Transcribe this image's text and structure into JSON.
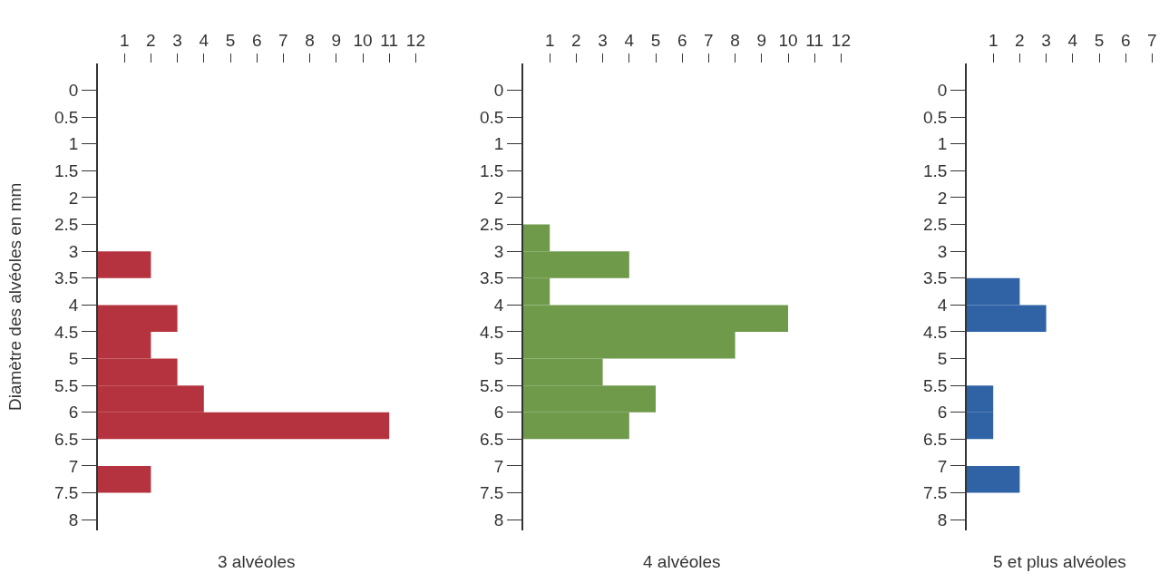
{
  "chart_data": [
    {
      "type": "histogram",
      "orientation": "horizontal",
      "ylabel": "Diamètre des alvéoles en mm",
      "xlabel": "3 alvéoles",
      "color": "#b5333e",
      "bins": [
        0,
        0.5,
        1,
        1.5,
        2,
        2.5,
        3,
        3.5,
        4,
        4.5,
        5,
        5.5,
        6,
        6.5,
        7,
        7.5,
        8
      ],
      "values": [
        0,
        0,
        0,
        0,
        0,
        0,
        2,
        0,
        3,
        2,
        3,
        4,
        11,
        0,
        2,
        0
      ],
      "xlim": [
        0,
        12
      ],
      "xticks": [
        1,
        2,
        3,
        4,
        5,
        6,
        7,
        8,
        9,
        10,
        11,
        12
      ],
      "ylim": [
        8.2,
        -0.5
      ],
      "yticks": [
        0,
        0.5,
        1,
        1.5,
        2,
        2.5,
        3,
        3.5,
        4,
        4.5,
        5,
        5.5,
        6,
        6.5,
        7,
        7.5,
        8
      ]
    },
    {
      "type": "histogram",
      "orientation": "horizontal",
      "xlabel": "4 alvéoles",
      "color": "#6e9a4a",
      "bins": [
        0,
        0.5,
        1,
        1.5,
        2,
        2.5,
        3,
        3.5,
        4,
        4.5,
        5,
        5.5,
        6,
        6.5,
        7,
        7.5,
        8
      ],
      "values": [
        0,
        0,
        0,
        0,
        0,
        1,
        4,
        1,
        10,
        8,
        3,
        5,
        4,
        0,
        0,
        0
      ],
      "xlim": [
        0,
        12
      ],
      "xticks": [
        1,
        2,
        3,
        4,
        5,
        6,
        7,
        8,
        9,
        10,
        11,
        12
      ],
      "ylim": [
        8.2,
        -0.5
      ],
      "yticks": [
        0,
        0.5,
        1,
        1.5,
        2,
        2.5,
        3,
        3.5,
        4,
        4.5,
        5,
        5.5,
        6,
        6.5,
        7,
        7.5,
        8
      ]
    },
    {
      "type": "histogram",
      "orientation": "horizontal",
      "xlabel": "5 et plus alvéoles",
      "color": "#2f63a6",
      "bins": [
        0,
        0.5,
        1,
        1.5,
        2,
        2.5,
        3,
        3.5,
        4,
        4.5,
        5,
        5.5,
        6,
        6.5,
        7,
        7.5,
        8
      ],
      "values": [
        0,
        0,
        0,
        0,
        0,
        0,
        0,
        2,
        3,
        0,
        0,
        1,
        1,
        0,
        2,
        0
      ],
      "xlim": [
        0,
        7
      ],
      "xticks": [
        1,
        2,
        3,
        4,
        5,
        6,
        7
      ],
      "ylim": [
        8.2,
        -0.5
      ],
      "yticks": [
        0,
        0.5,
        1,
        1.5,
        2,
        2.5,
        3,
        3.5,
        4,
        4.5,
        5,
        5.5,
        6,
        6.5,
        7,
        7.5,
        8
      ]
    }
  ]
}
